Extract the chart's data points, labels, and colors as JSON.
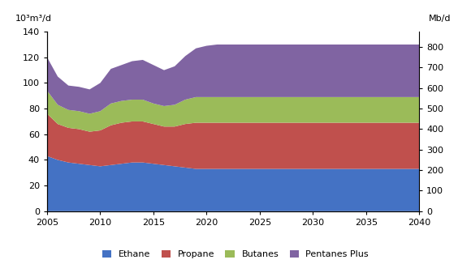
{
  "years": [
    2005,
    2006,
    2007,
    2008,
    2009,
    2010,
    2011,
    2012,
    2013,
    2014,
    2015,
    2016,
    2017,
    2018,
    2019,
    2020,
    2021,
    2022,
    2023,
    2024,
    2025,
    2026,
    2027,
    2028,
    2029,
    2030,
    2031,
    2032,
    2033,
    2034,
    2035,
    2036,
    2037,
    2038,
    2039,
    2040
  ],
  "ethane": [
    43,
    40,
    38,
    37,
    36,
    35,
    36,
    37,
    38,
    38,
    37,
    36,
    35,
    34,
    33,
    33,
    33,
    33,
    33,
    33,
    33,
    33,
    33,
    33,
    33,
    33,
    33,
    33,
    33,
    33,
    33,
    33,
    33,
    33,
    33,
    33
  ],
  "propane": [
    33,
    28,
    27,
    27,
    26,
    28,
    31,
    32,
    32,
    32,
    31,
    30,
    31,
    34,
    36,
    36,
    36,
    36,
    36,
    36,
    36,
    36,
    36,
    36,
    36,
    36,
    36,
    36,
    36,
    36,
    36,
    36,
    36,
    36,
    36,
    36
  ],
  "butanes": [
    18,
    15,
    14,
    14,
    14,
    15,
    17,
    17,
    17,
    17,
    16,
    16,
    17,
    19,
    20,
    20,
    20,
    20,
    20,
    20,
    20,
    20,
    20,
    20,
    20,
    20,
    20,
    20,
    20,
    20,
    20,
    20,
    20,
    20,
    20,
    20
  ],
  "pentanes_plus": [
    26,
    22,
    19,
    19,
    19,
    22,
    27,
    28,
    30,
    31,
    30,
    28,
    30,
    34,
    38,
    40,
    41,
    41,
    41,
    41,
    41,
    41,
    41,
    41,
    41,
    41,
    41,
    41,
    41,
    41,
    41,
    41,
    41,
    41,
    41,
    41
  ],
  "ethane_color": "#4472C4",
  "propane_color": "#C0504D",
  "butanes_color": "#9BBB59",
  "pentanes_plus_color": "#8064A2",
  "ylabel_left": "10³m³/d",
  "ylabel_right": "Mb/d",
  "ylim_left": [
    0,
    140
  ],
  "ylim_right": [
    0,
    875
  ],
  "xticks": [
    2005,
    2010,
    2015,
    2020,
    2025,
    2030,
    2035,
    2040
  ],
  "yticks_left": [
    0,
    20,
    40,
    60,
    80,
    100,
    120,
    140
  ],
  "yticks_right": [
    0,
    100,
    200,
    300,
    400,
    500,
    600,
    700,
    800
  ],
  "legend_labels": [
    "Ethane",
    "Propane",
    "Butanes",
    "Pentanes Plus"
  ]
}
